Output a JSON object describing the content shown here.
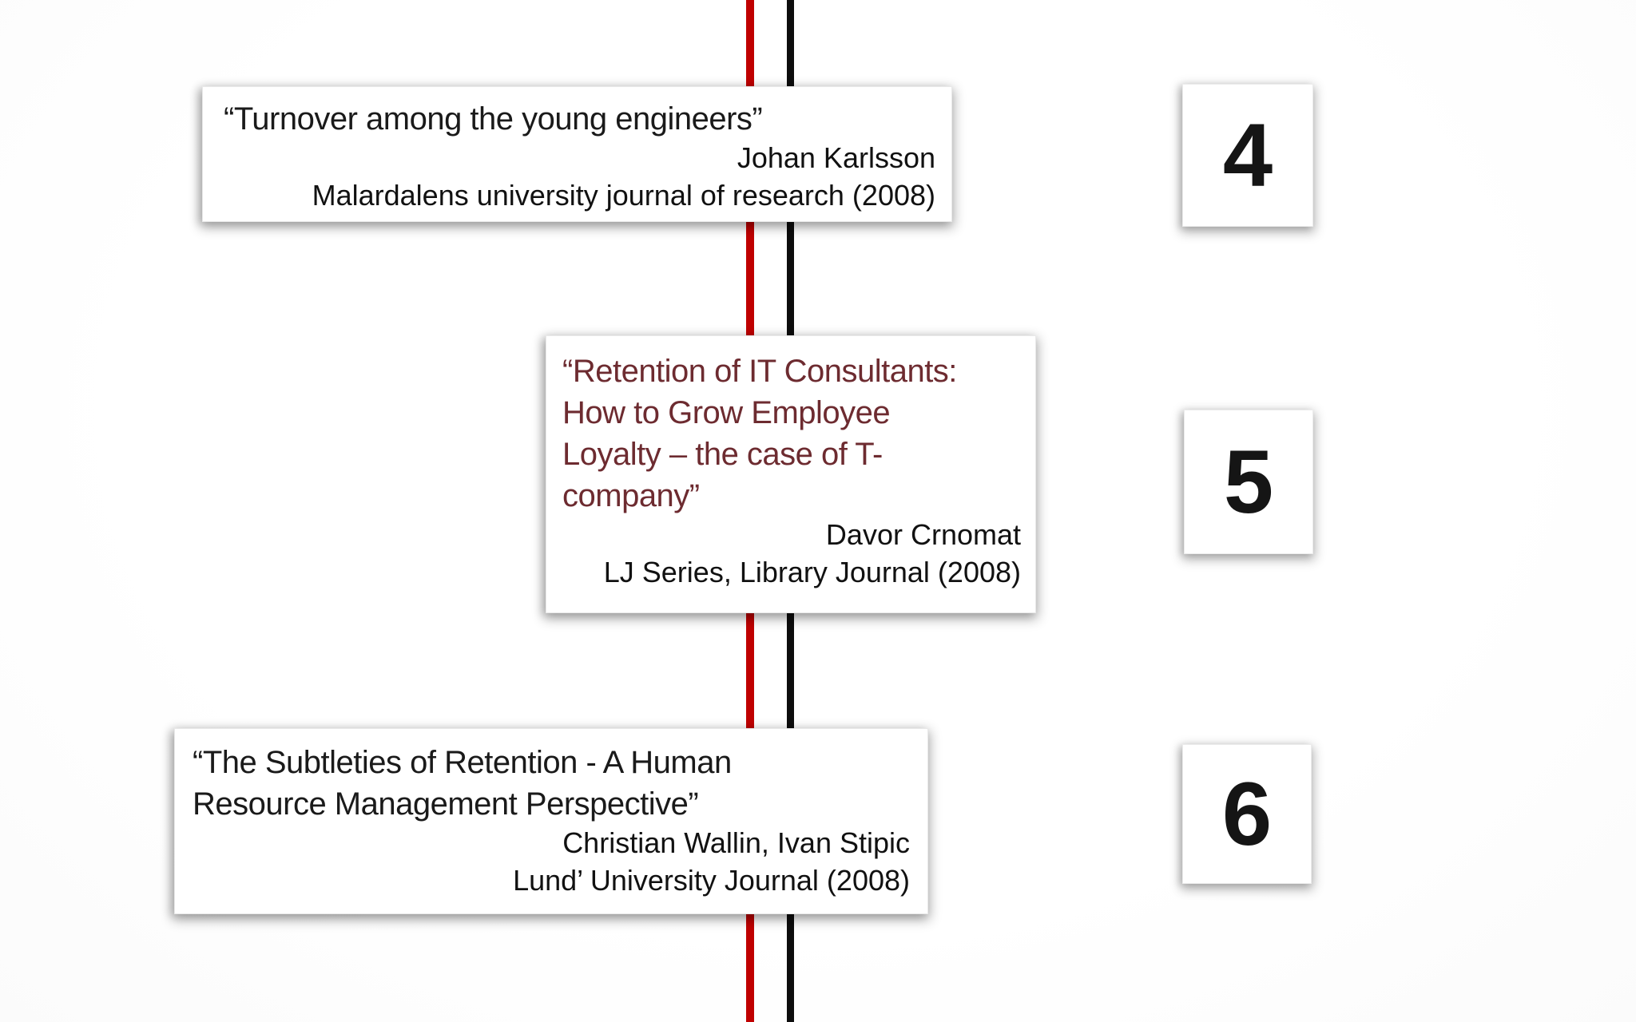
{
  "theme": {
    "background": "#fdfdfd",
    "red_line_color": "#c00000",
    "black_line_color": "#0d0d0d",
    "card_background": "#ffffff",
    "maroon_title_color": "#6d2b30",
    "text_color": "#1a1a1a"
  },
  "timeline": {
    "references": [
      {
        "number": "4",
        "title": "“Turnover among the young engineers”",
        "authors": "Johan Karlsson",
        "source": "Malardalens university journal of research (2008)"
      },
      {
        "number": "5",
        "title": "“Retention of IT Consultants:\nHow to Grow Employee\nLoyalty – the case of T-\ncompany”",
        "authors": "Davor Crnomat",
        "source": "LJ Series, Library Journal (2008)"
      },
      {
        "number": "6",
        "title": "“The Subtleties of Retention - A Human\nResource Management Perspective”",
        "authors": "Christian Wallin, Ivan Stipic",
        "source": "Lund’ University Journal (2008)"
      }
    ]
  }
}
